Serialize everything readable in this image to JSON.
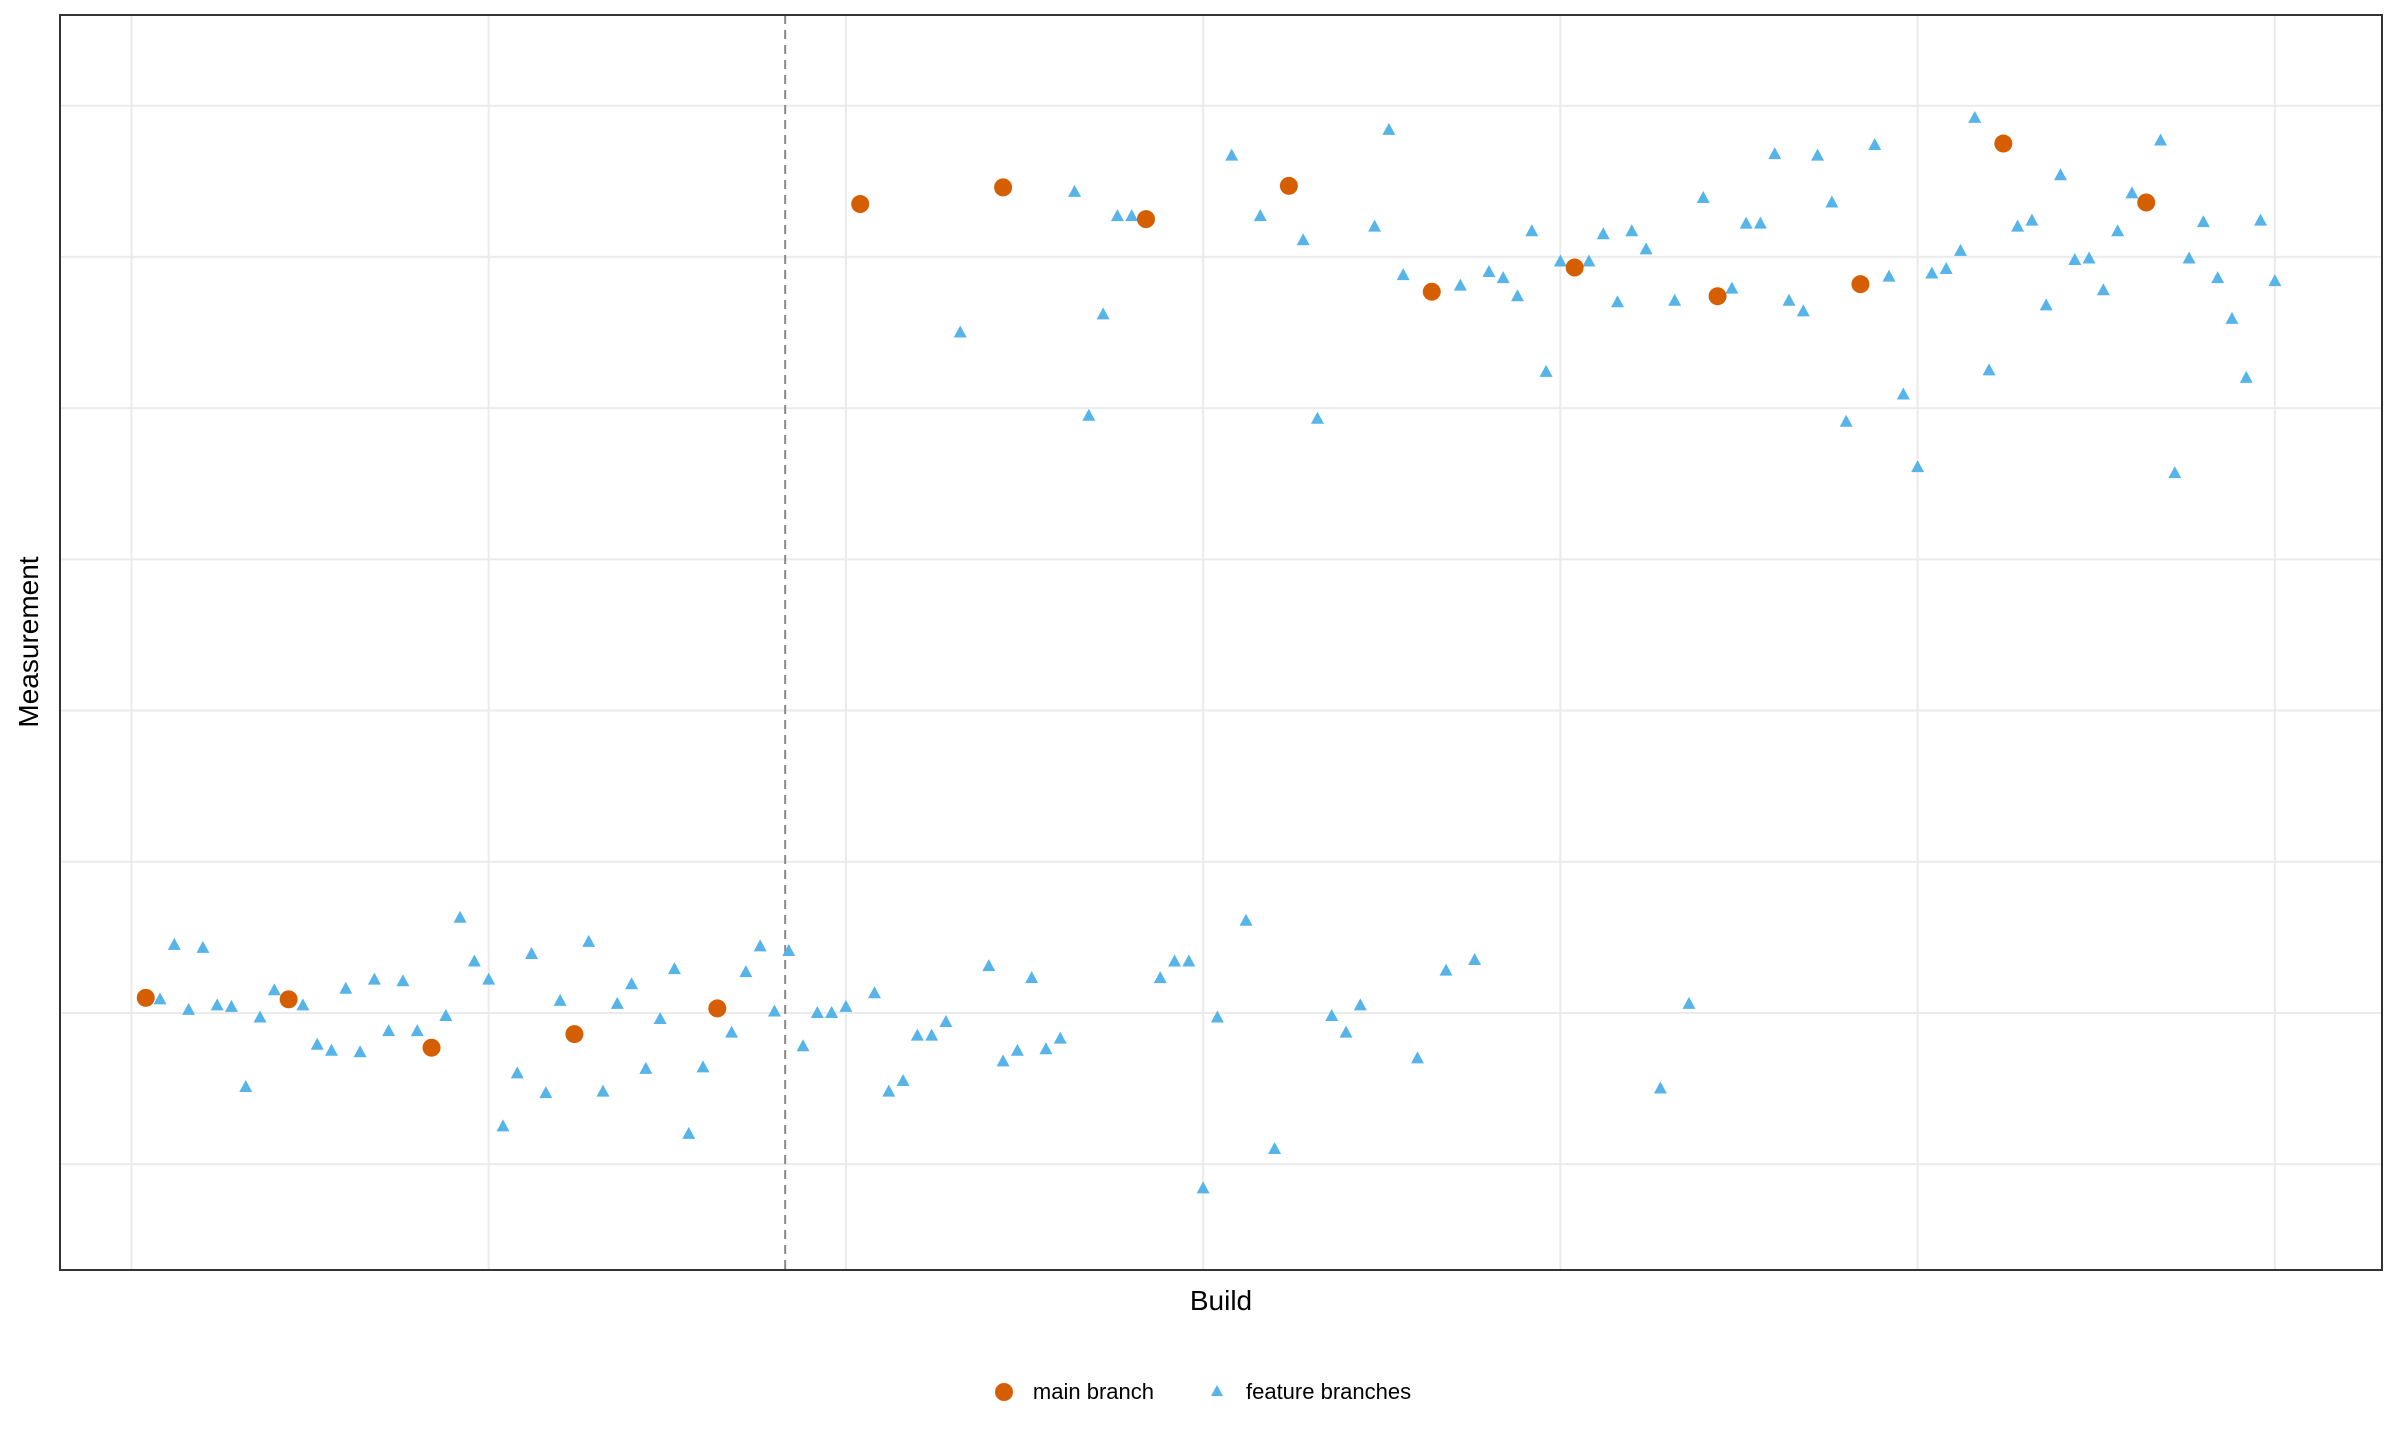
{
  "chart_data": {
    "type": "scatter",
    "title": "",
    "xlabel": "Build",
    "ylabel": "Measurement",
    "xlim": [
      -2,
      63
    ],
    "ylim": [
      -0.7,
      7.6
    ],
    "grid": true,
    "x_tick_labels_shown": false,
    "y_tick_labels_shown": false,
    "vline": {
      "x": 18.3,
      "style": "dashed"
    },
    "legend": {
      "position": "bottom"
    },
    "series": [
      {
        "name": "main branch",
        "marker": "circle",
        "color": "#D55E00",
        "x": [
          0.4,
          4.4,
          8.4,
          12.4,
          16.4,
          20.4,
          24.4,
          28.4,
          32.4,
          36.4,
          40.4,
          44.4,
          48.4,
          52.4,
          56.4
        ],
        "y": [
          1.1,
          1.09,
          0.77,
          0.86,
          1.03,
          6.35,
          6.46,
          6.25,
          6.47,
          5.77,
          5.93,
          5.74,
          5.82,
          6.75,
          6.36
        ]
      },
      {
        "name": "feature branches",
        "marker": "triangle",
        "color": "#56B4E9",
        "x": [
          0.8,
          1.2,
          1.6,
          2.0,
          2.4,
          2.8,
          3.2,
          3.6,
          4.0,
          4.8,
          5.2,
          5.6,
          6.0,
          6.4,
          6.8,
          7.2,
          7.6,
          8.0,
          8.8,
          9.2,
          9.6,
          10.0,
          10.4,
          10.8,
          11.2,
          11.6,
          12.0,
          12.8,
          13.2,
          13.6,
          14.0,
          14.4,
          14.8,
          15.2,
          15.6,
          16.0,
          16.8,
          17.2,
          17.6,
          18.0,
          18.4,
          18.8,
          19.2,
          19.6,
          20.0,
          20.8,
          21.2,
          21.6,
          22.0,
          22.4,
          22.8,
          23.2,
          24.0,
          24.4,
          24.8,
          25.2,
          25.6,
          26.0,
          26.4,
          26.8,
          27.2,
          27.6,
          28.0,
          28.8,
          29.2,
          29.6,
          30.0,
          30.4,
          30.8,
          31.2,
          31.6,
          32.0,
          32.8,
          33.2,
          33.6,
          34.0,
          34.4,
          34.8,
          35.2,
          35.6,
          36.0,
          36.8,
          37.2,
          37.6,
          38.0,
          38.4,
          38.8,
          39.2,
          39.6,
          40.0,
          40.8,
          41.2,
          41.6,
          42.0,
          42.4,
          42.8,
          43.2,
          43.6,
          44.0,
          44.8,
          45.2,
          45.6,
          46.0,
          46.4,
          46.8,
          47.2,
          47.6,
          48.0,
          48.8,
          49.2,
          49.6,
          50.0,
          50.4,
          50.8,
          51.2,
          51.6,
          52.0,
          52.8,
          53.2,
          53.6,
          54.0,
          54.4,
          54.8,
          55.2,
          55.6,
          56.0,
          56.8,
          57.2,
          57.6,
          58.0,
          58.4,
          58.8,
          59.2,
          59.6,
          60.0
        ],
        "y": [
          1.09,
          1.45,
          1.02,
          1.43,
          1.05,
          1.04,
          0.51,
          0.97,
          1.15,
          1.05,
          0.79,
          0.75,
          1.16,
          0.74,
          1.22,
          0.88,
          1.21,
          0.88,
          0.98,
          1.63,
          1.34,
          1.22,
          0.25,
          0.6,
          1.39,
          0.47,
          1.08,
          1.47,
          0.48,
          1.06,
          1.19,
          0.63,
          0.96,
          1.29,
          0.2,
          0.64,
          0.87,
          1.27,
          1.44,
          1.01,
          1.41,
          0.78,
          1.0,
          1.0,
          1.04,
          1.13,
          0.48,
          0.55,
          0.85,
          0.85,
          0.94,
          5.5,
          1.31,
          0.68,
          0.75,
          1.23,
          0.76,
          0.83,
          6.43,
          4.95,
          5.62,
          6.27,
          6.27,
          1.23,
          1.34,
          1.34,
          -0.16,
          0.97,
          6.67,
          1.61,
          6.27,
          0.1,
          6.11,
          4.93,
          0.98,
          0.87,
          1.05,
          6.2,
          6.84,
          5.88,
          0.7,
          1.28,
          5.81,
          1.35,
          5.9,
          5.86,
          5.74,
          6.17,
          5.24,
          5.97,
          5.97,
          6.15,
          5.7,
          6.17,
          6.05,
          0.5,
          5.71,
          1.06,
          6.39,
          5.79,
          6.22,
          6.22,
          6.68,
          5.71,
          5.64,
          6.67,
          6.36,
          4.91,
          6.74,
          5.87,
          5.09,
          4.61,
          5.89,
          5.92,
          6.04,
          6.92,
          5.25,
          6.2,
          6.24,
          5.68,
          6.54,
          5.98,
          5.99,
          5.78,
          6.17,
          6.42,
          6.77,
          4.57,
          5.99,
          6.23,
          5.86,
          5.59,
          5.2,
          6.24,
          5.84
        ]
      }
    ]
  }
}
